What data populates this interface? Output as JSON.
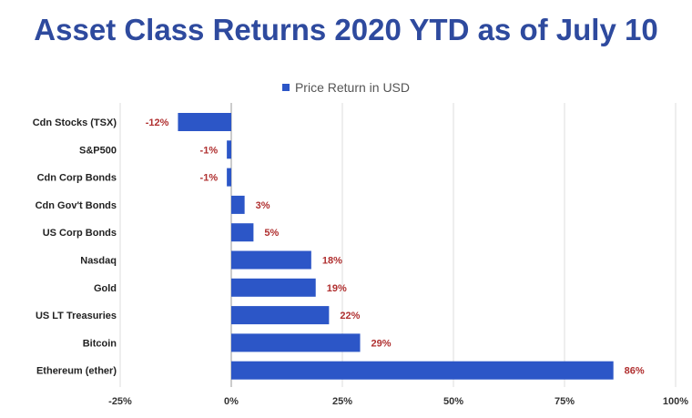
{
  "chart_data": {
    "type": "bar",
    "orientation": "horizontal",
    "title": "Asset Class Returns 2020 YTD as of July 10",
    "legend": "Price Return in USD",
    "legend_position": "top",
    "categories": [
      "Cdn Stocks (TSX)",
      "S&P500",
      "Cdn Corp Bonds",
      "Cdn Gov't Bonds",
      "US Corp Bonds",
      "Nasdaq",
      "Gold",
      "US LT Treasuries",
      "Bitcoin",
      "Ethereum (ether)"
    ],
    "series": [
      {
        "name": "Price Return in USD",
        "values": [
          -12,
          -1,
          -1,
          3,
          5,
          18,
          19,
          22,
          29,
          86
        ],
        "labels": [
          "-12%",
          "-1%",
          "-1%",
          "3%",
          "5%",
          "18%",
          "19%",
          "22%",
          "29%",
          "86%"
        ]
      }
    ],
    "xlim": [
      -25,
      100
    ],
    "xticks": [
      -25,
      0,
      25,
      50,
      75,
      100
    ],
    "xtick_labels": [
      "-25%",
      "0%",
      "25%",
      "50%",
      "75%",
      "100%"
    ],
    "grid": true,
    "colors": {
      "bar": "#2c56c7",
      "label": "#b03030",
      "title": "#2e4a9e",
      "grid": "#dddddd"
    }
  }
}
